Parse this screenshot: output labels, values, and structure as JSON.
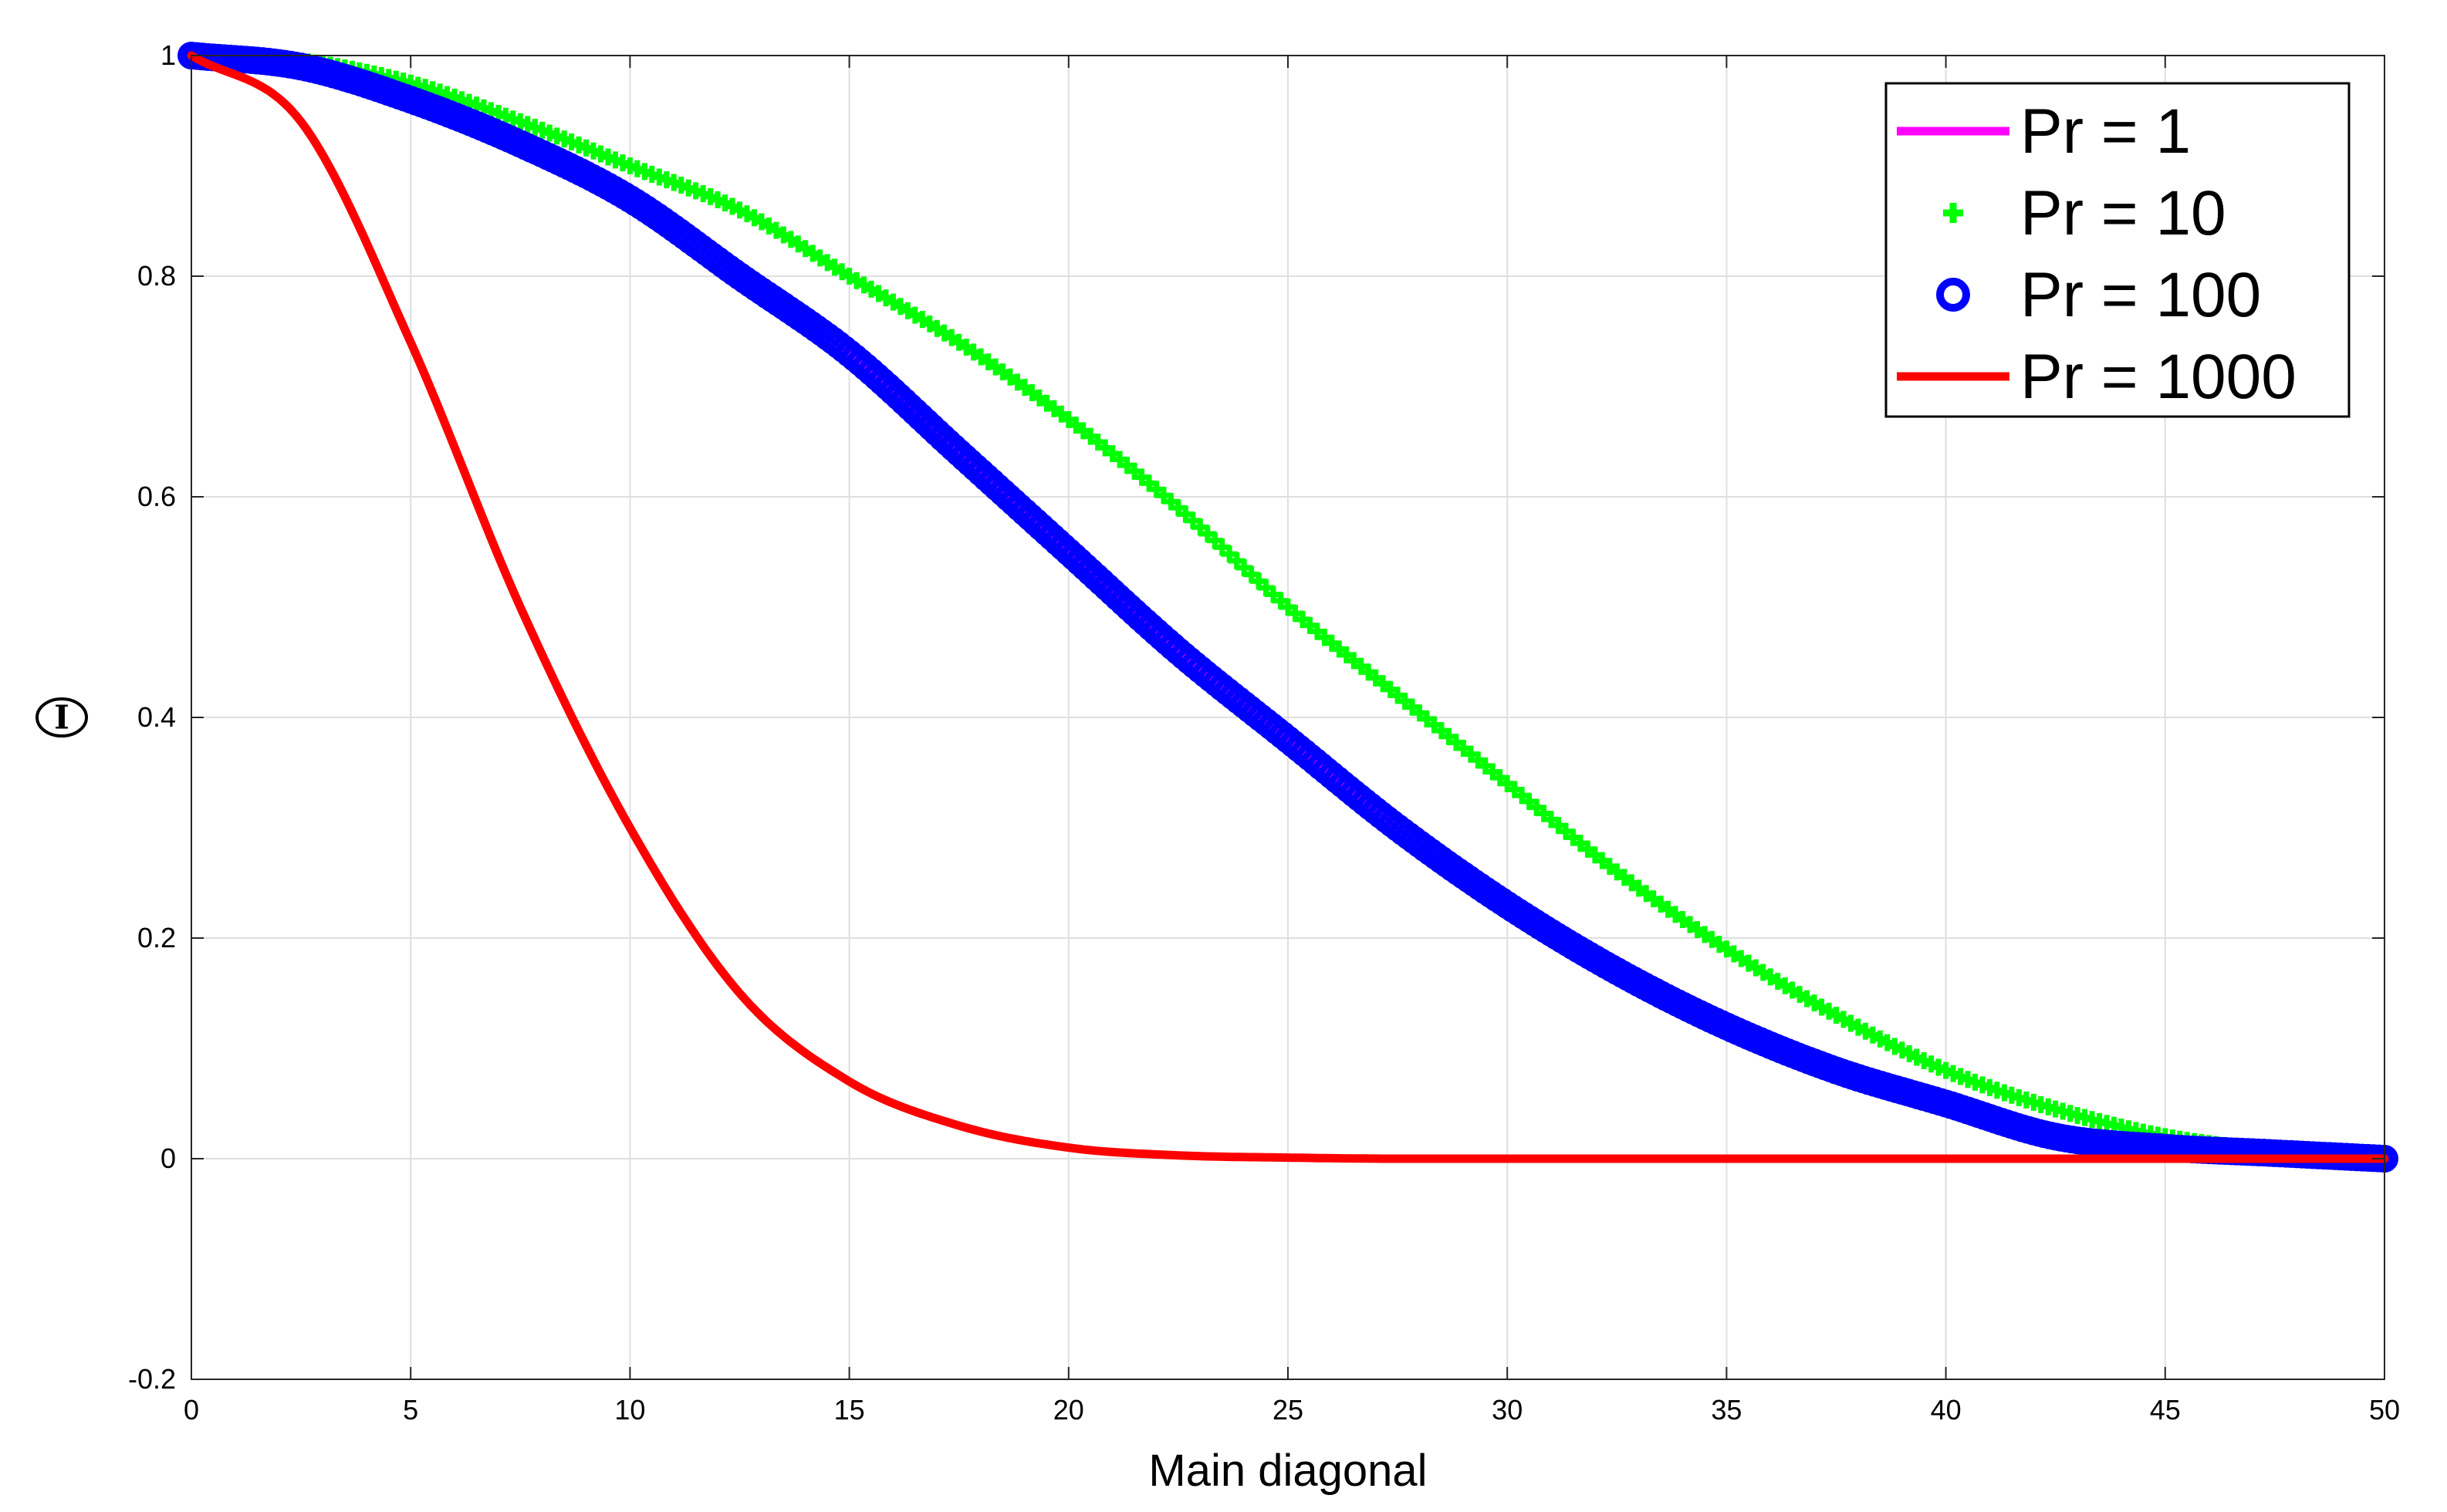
{
  "chart_data": {
    "type": "line",
    "title": "",
    "xlabel": "Main diagonal",
    "ylabel": "Θ",
    "xlim": [
      0,
      50
    ],
    "ylim": [
      -0.2,
      1
    ],
    "xticks": [
      0,
      5,
      10,
      15,
      20,
      25,
      30,
      35,
      40,
      45,
      50
    ],
    "yticks": [
      -0.2,
      0,
      0.2,
      0.4,
      0.6,
      0.8,
      1
    ],
    "xtick_labels": [
      "0",
      "5",
      "10",
      "15",
      "20",
      "25",
      "30",
      "35",
      "40",
      "45",
      "50"
    ],
    "ytick_labels": [
      "-0.2",
      "0",
      "0.2",
      "0.4",
      "0.6",
      "0.8",
      "1"
    ],
    "grid": true,
    "legend_position": "top-right",
    "x": [
      0,
      2.5,
      5,
      7.5,
      10,
      12.5,
      15,
      17.5,
      20,
      22.5,
      25,
      27.5,
      30,
      32.5,
      35,
      37.5,
      40,
      42.5,
      45,
      47.5,
      50
    ],
    "series": [
      {
        "name": "Pr = 1",
        "style": "line",
        "color": "#ff00ff",
        "values": [
          1,
          0.99,
          0.96,
          0.92,
          0.87,
          0.8,
          0.73,
          0.64,
          0.55,
          0.46,
          0.38,
          0.3,
          0.23,
          0.17,
          0.12,
          0.08,
          0.05,
          0.02,
          0.01,
          0.005,
          0
        ]
      },
      {
        "name": "Pr = 10",
        "style": "plus-markers",
        "color": "#00ff00",
        "values": [
          1,
          0.995,
          0.975,
          0.94,
          0.9,
          0.86,
          0.8,
          0.74,
          0.67,
          0.59,
          0.5,
          0.42,
          0.34,
          0.26,
          0.19,
          0.13,
          0.08,
          0.045,
          0.02,
          0.007,
          0
        ]
      },
      {
        "name": "Pr = 100",
        "style": "circle-markers",
        "color": "#0000ff",
        "values": [
          1,
          0.99,
          0.96,
          0.92,
          0.87,
          0.8,
          0.73,
          0.64,
          0.55,
          0.46,
          0.38,
          0.3,
          0.23,
          0.17,
          0.12,
          0.08,
          0.05,
          0.02,
          0.01,
          0.005,
          0
        ]
      },
      {
        "name": "Pr = 1000",
        "style": "line",
        "color": "#ff0000",
        "values": [
          1,
          0.94,
          0.74,
          0.5,
          0.3,
          0.15,
          0.07,
          0.03,
          0.01,
          0.003,
          0.001,
          0,
          0,
          0,
          0,
          0,
          0,
          0,
          0,
          0,
          0
        ]
      }
    ]
  }
}
